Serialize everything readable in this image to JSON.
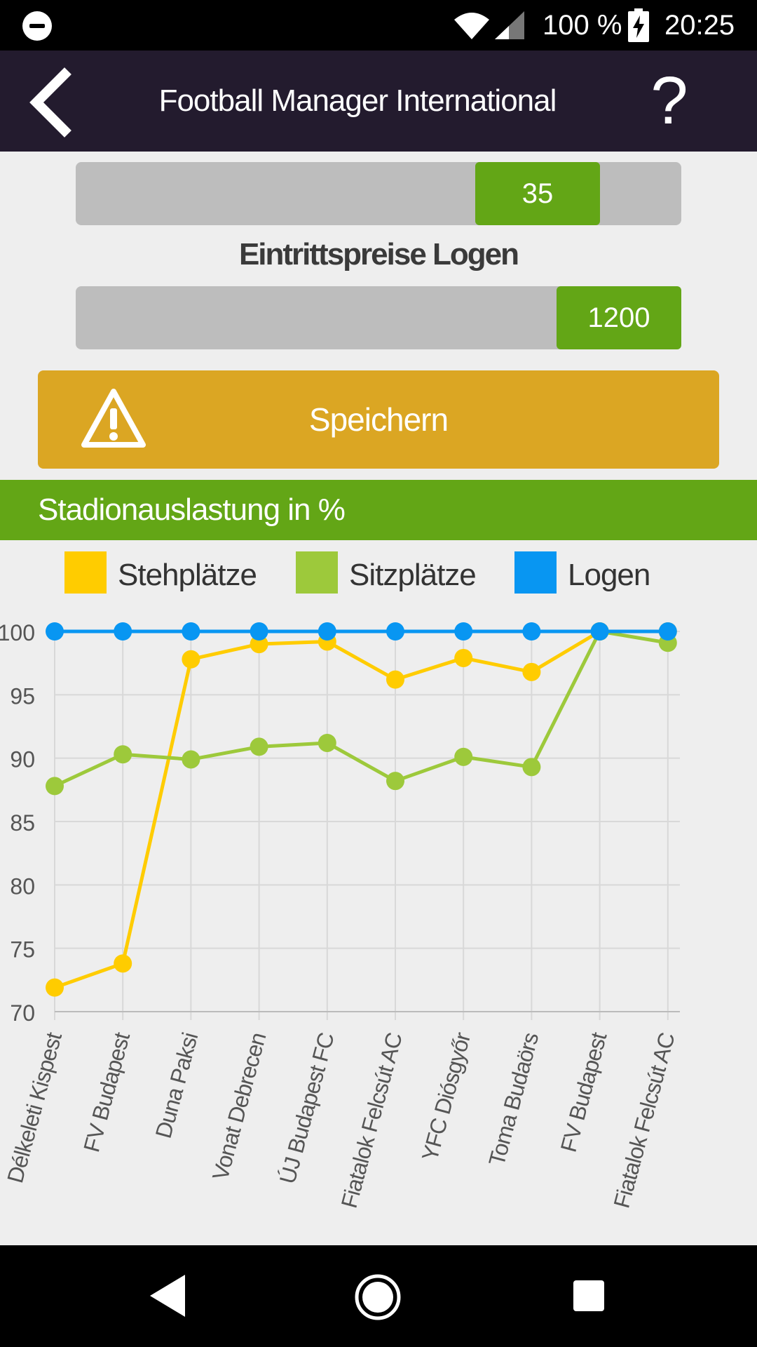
{
  "status_bar": {
    "battery_text": "100 %",
    "time": "20:25",
    "icons": [
      "do-not-disturb-icon",
      "wifi-icon",
      "signal-icon",
      "battery-charging-icon"
    ]
  },
  "app_bar": {
    "title": "Football Manager International",
    "help_label": "?",
    "back_icon": "chevron-left-icon"
  },
  "price_standing": {
    "value": "35",
    "fraction": 0.66
  },
  "price_boxes": {
    "label": "Eintrittspreise Logen",
    "value": "1200",
    "fraction": 1.0
  },
  "save_button": {
    "label": "Speichern",
    "icon": "warning-icon",
    "color": "#dba623"
  },
  "section_header": {
    "title": "Stadionauslastung in %",
    "color": "#63a616"
  },
  "chart_data": {
    "type": "line",
    "title": "",
    "xlabel": "",
    "ylabel": "",
    "ylim": [
      70,
      100
    ],
    "yticks": [
      70,
      75,
      80,
      85,
      90,
      95,
      100
    ],
    "grid": true,
    "legend": "top",
    "categories": [
      "Délkeleti Kispest",
      "FV Budapest",
      "Duna Paksi",
      "Vonat Debrecen",
      "ÚJ Budapest FC",
      "Fiatalok Felcsút AC",
      "YFC Diósgyőr",
      "Toma Budaörs",
      "FV Budapest",
      "Fiatalok Felcsút AC"
    ],
    "series": [
      {
        "name": "Stehplätze",
        "color": "#ffcc00",
        "values": [
          71.9,
          73.8,
          97.8,
          99.0,
          99.2,
          96.2,
          97.9,
          96.8,
          100,
          100
        ]
      },
      {
        "name": "Sitzplätze",
        "color": "#9dc93b",
        "values": [
          87.8,
          90.3,
          89.9,
          90.9,
          91.2,
          88.2,
          90.1,
          89.3,
          100,
          99.1
        ]
      },
      {
        "name": "Logen",
        "color": "#0896f2",
        "values": [
          100,
          100,
          100,
          100,
          100,
          100,
          100,
          100,
          100,
          100
        ]
      }
    ]
  }
}
